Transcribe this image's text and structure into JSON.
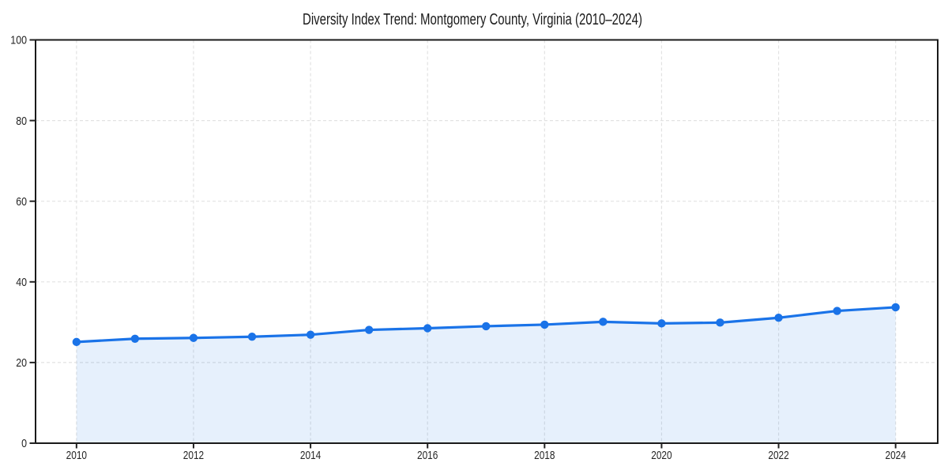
{
  "page": {
    "background": "#ffffff"
  },
  "chart_data": {
    "type": "area",
    "title": "Diversity Index Trend: Montgomery County, Virginia (2010–2024)",
    "x": [
      2010,
      2011,
      2012,
      2013,
      2014,
      2015,
      2016,
      2017,
      2018,
      2019,
      2020,
      2021,
      2022,
      2023,
      2024
    ],
    "series": [
      {
        "name": "Diversity Index",
        "values": [
          25.1,
          25.9,
          26.1,
          26.4,
          26.9,
          28.1,
          28.5,
          29.0,
          29.4,
          30.1,
          29.7,
          29.9,
          31.1,
          32.8,
          33.7
        ]
      }
    ],
    "xlabel": "",
    "ylabel": "",
    "xlim": [
      2009.3,
      2024.72
    ],
    "ylim": [
      0,
      100
    ],
    "xticks": [
      2010,
      2012,
      2014,
      2016,
      2018,
      2020,
      2022,
      2024
    ],
    "yticks": [
      0,
      20,
      40,
      60,
      80,
      100
    ],
    "grid": true,
    "grid_style": "dashed",
    "legend": "none",
    "marker": "circle",
    "colors": {
      "line": "#1a73e8",
      "marker": "#1a73e8",
      "area_fill": "rgba(26,115,232,0.11)",
      "gridline": "#e2e2e2",
      "spine": "#1a1a1a",
      "tick": "#222222",
      "tick_label": "#262626",
      "title": "#1a1a1a"
    }
  }
}
